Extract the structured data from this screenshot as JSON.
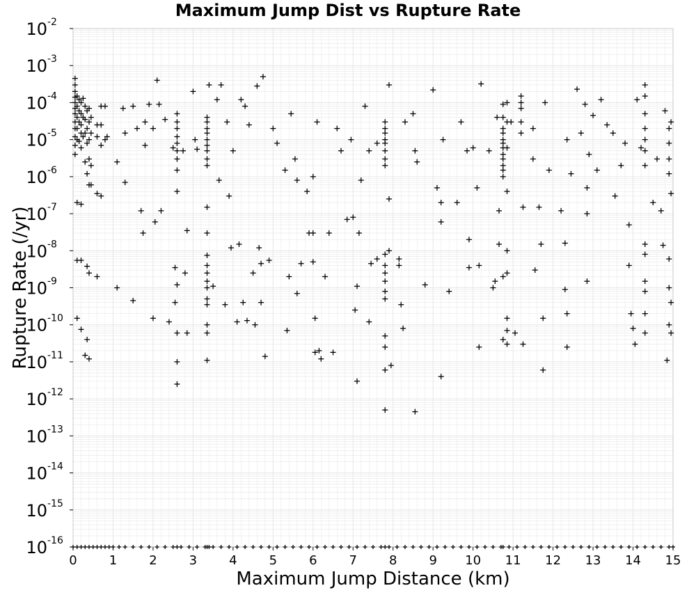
{
  "chart_data": {
    "type": "scatter",
    "title": "Maximum Jump Dist vs Rupture Rate",
    "xlabel": "Maximum Jump Distance (km)",
    "ylabel": "Rupture Rate (/yr)",
    "xlim": [
      0,
      15
    ],
    "ylim": [
      1e-16,
      0.01
    ],
    "yscale": "log",
    "grid": true,
    "marker": "+",
    "marker_color": "#000000",
    "grid_color": "#e6e6e6",
    "x_ticks": [
      "0",
      "1",
      "2",
      "3",
      "4",
      "5",
      "6",
      "7",
      "8",
      "9",
      "10",
      "11",
      "12",
      "13",
      "14",
      "15"
    ],
    "y_ticks": [
      {
        "base": "10",
        "exp": "-2"
      },
      {
        "base": "10",
        "exp": "-3"
      },
      {
        "base": "10",
        "exp": "-4"
      },
      {
        "base": "10",
        "exp": "-5"
      },
      {
        "base": "10",
        "exp": "-6"
      },
      {
        "base": "10",
        "exp": "-7"
      },
      {
        "base": "10",
        "exp": "-8"
      },
      {
        "base": "10",
        "exp": "-9"
      },
      {
        "base": "10",
        "exp": "-10"
      },
      {
        "base": "10",
        "exp": "-11"
      },
      {
        "base": "10",
        "exp": "-12"
      },
      {
        "base": "10",
        "exp": "-13"
      },
      {
        "base": "10",
        "exp": "-14"
      },
      {
        "base": "10",
        "exp": "-15"
      },
      {
        "base": "10",
        "exp": "-16"
      }
    ],
    "points": [
      [
        0.05,
        0.00045
      ],
      [
        0.05,
        0.0003
      ],
      [
        0.05,
        0.0002
      ],
      [
        0.05,
        0.00014
      ],
      [
        0.05,
        0.0001
      ],
      [
        0.05,
        7e-05
      ],
      [
        0.05,
        5e-05
      ],
      [
        0.05,
        3e-05
      ],
      [
        0.05,
        2e-05
      ],
      [
        0.05,
        1.2e-05
      ],
      [
        0.05,
        7e-06
      ],
      [
        0.05,
        4e-06
      ],
      [
        0.1,
        0.00015
      ],
      [
        0.1,
        8e-05
      ],
      [
        0.1,
        4e-05
      ],
      [
        0.1,
        2e-05
      ],
      [
        0.1,
        1e-05
      ],
      [
        0.1,
        2e-07
      ],
      [
        0.1,
        5.5e-09
      ],
      [
        0.1,
        1.5e-10
      ],
      [
        0.15,
        0.00012
      ],
      [
        0.15,
        6e-05
      ],
      [
        0.15,
        3e-05
      ],
      [
        0.15,
        9e-06
      ],
      [
        0.2,
        0.0001
      ],
      [
        0.2,
        5e-05
      ],
      [
        0.2,
        2.5e-05
      ],
      [
        0.2,
        1.5e-05
      ],
      [
        0.2,
        6e-06
      ],
      [
        0.2,
        1.8e-07
      ],
      [
        0.2,
        5.5e-09
      ],
      [
        0.2,
        7.5e-11
      ],
      [
        0.25,
        0.00013
      ],
      [
        0.25,
        4e-05
      ],
      [
        0.25,
        1.2e-05
      ],
      [
        0.3,
        8e-05
      ],
      [
        0.3,
        3.5e-05
      ],
      [
        0.3,
        1.5e-05
      ],
      [
        0.3,
        2.5e-06
      ],
      [
        0.3,
        1.5e-11
      ],
      [
        0.35,
        6e-05
      ],
      [
        0.35,
        2e-05
      ],
      [
        0.35,
        8e-06
      ],
      [
        0.35,
        1.2e-06
      ],
      [
        0.35,
        3.8e-09
      ],
      [
        0.35,
        4e-11
      ],
      [
        0.4,
        7e-05
      ],
      [
        0.4,
        3e-05
      ],
      [
        0.4,
        1e-05
      ],
      [
        0.4,
        3e-06
      ],
      [
        0.4,
        6e-07
      ],
      [
        0.4,
        2.5e-09
      ],
      [
        0.4,
        1.2e-11
      ],
      [
        0.45,
        4e-05
      ],
      [
        0.45,
        1.5e-05
      ],
      [
        0.45,
        2e-06
      ],
      [
        0.45,
        6e-07
      ],
      [
        0.6,
        2.5e-05
      ],
      [
        0.6,
        1.2e-05
      ],
      [
        0.6,
        3.5e-07
      ],
      [
        0.6,
        2e-09
      ],
      [
        0.7,
        8e-05
      ],
      [
        0.7,
        2.5e-05
      ],
      [
        0.7,
        7e-06
      ],
      [
        0.7,
        3e-07
      ],
      [
        0.8,
        8e-05
      ],
      [
        0.8,
        1e-05
      ],
      [
        0.85,
        1.2e-05
      ],
      [
        1.1,
        2.5e-06
      ],
      [
        1.1,
        1e-09
      ],
      [
        1.25,
        7e-05
      ],
      [
        1.3,
        1.5e-05
      ],
      [
        1.3,
        7e-07
      ],
      [
        1.5,
        4.5e-10
      ],
      [
        1.5,
        8e-05
      ],
      [
        1.6,
        2e-05
      ],
      [
        1.7,
        1.2e-07
      ],
      [
        1.75,
        3e-08
      ],
      [
        1.8,
        7e-06
      ],
      [
        1.8,
        3e-05
      ],
      [
        1.9,
        9e-05
      ],
      [
        2.0,
        1.5e-10
      ],
      [
        2.0,
        2e-05
      ],
      [
        2.05,
        6e-08
      ],
      [
        2.1,
        0.0004
      ],
      [
        2.15,
        9e-05
      ],
      [
        2.2,
        1.2e-07
      ],
      [
        2.3,
        3.5e-05
      ],
      [
        2.4,
        1.2e-10
      ],
      [
        2.5,
        6e-06
      ],
      [
        2.55,
        3.5e-09
      ],
      [
        2.55,
        4e-10
      ],
      [
        2.6,
        5e-05
      ],
      [
        2.6,
        3e-05
      ],
      [
        2.6,
        2e-05
      ],
      [
        2.6,
        1.2e-05
      ],
      [
        2.6,
        8e-06
      ],
      [
        2.6,
        5e-06
      ],
      [
        2.6,
        3e-06
      ],
      [
        2.6,
        1.5e-06
      ],
      [
        2.6,
        4e-07
      ],
      [
        2.6,
        1.2e-09
      ],
      [
        2.6,
        6e-11
      ],
      [
        2.6,
        1e-11
      ],
      [
        2.6,
        2.5e-12
      ],
      [
        2.75,
        5e-06
      ],
      [
        2.8,
        2.5e-09
      ],
      [
        2.85,
        3.5e-08
      ],
      [
        2.85,
        6e-11
      ],
      [
        3.0,
        0.0002
      ],
      [
        3.05,
        1e-05
      ],
      [
        3.1,
        5.5e-06
      ],
      [
        3.35,
        4e-05
      ],
      [
        3.35,
        3e-05
      ],
      [
        3.35,
        2e-05
      ],
      [
        3.35,
        1.5e-05
      ],
      [
        3.35,
        1e-05
      ],
      [
        3.35,
        7e-06
      ],
      [
        3.35,
        5e-06
      ],
      [
        3.35,
        3e-06
      ],
      [
        3.35,
        2e-06
      ],
      [
        3.35,
        1.5e-07
      ],
      [
        3.35,
        3e-08
      ],
      [
        3.35,
        7.5e-09
      ],
      [
        3.35,
        4e-09
      ],
      [
        3.35,
        2.5e-09
      ],
      [
        3.35,
        1.5e-09
      ],
      [
        3.35,
        1e-09
      ],
      [
        3.35,
        5e-10
      ],
      [
        3.35,
        3.5e-10
      ],
      [
        3.35,
        1e-10
      ],
      [
        3.35,
        6e-11
      ],
      [
        3.35,
        1.1e-11
      ],
      [
        3.4,
        0.0003
      ],
      [
        3.5,
        1.1e-09
      ],
      [
        3.6,
        0.00012
      ],
      [
        3.65,
        8e-07
      ],
      [
        3.7,
        0.0003
      ],
      [
        3.8,
        3.5e-10
      ],
      [
        3.85,
        3e-05
      ],
      [
        3.9,
        3e-07
      ],
      [
        3.95,
        1.2e-08
      ],
      [
        4.0,
        5e-06
      ],
      [
        4.1,
        1.2e-10
      ],
      [
        4.15,
        1.5e-08
      ],
      [
        4.2,
        0.00012
      ],
      [
        4.25,
        4e-10
      ],
      [
        4.3,
        8e-05
      ],
      [
        4.35,
        1.3e-10
      ],
      [
        4.4,
        2.5e-05
      ],
      [
        4.5,
        2.5e-09
      ],
      [
        4.55,
        1e-10
      ],
      [
        4.6,
        0.00028
      ],
      [
        4.65,
        1.2e-08
      ],
      [
        4.7,
        4.5e-09
      ],
      [
        4.7,
        4e-10
      ],
      [
        4.75,
        0.0005
      ],
      [
        4.8,
        1.4e-11
      ],
      [
        4.9,
        5.5e-09
      ],
      [
        5.0,
        2e-05
      ],
      [
        5.1,
        8e-06
      ],
      [
        5.3,
        1.5e-06
      ],
      [
        5.35,
        7e-11
      ],
      [
        5.4,
        2e-09
      ],
      [
        5.45,
        5e-05
      ],
      [
        5.55,
        3e-06
      ],
      [
        5.6,
        7e-10
      ],
      [
        5.6,
        8e-07
      ],
      [
        5.7,
        4.5e-09
      ],
      [
        5.85,
        4e-07
      ],
      [
        5.9,
        3e-08
      ],
      [
        6.0,
        5e-09
      ],
      [
        6.0,
        3e-08
      ],
      [
        6.0,
        1e-06
      ],
      [
        6.05,
        1.5e-10
      ],
      [
        6.05,
        1.8e-11
      ],
      [
        6.1,
        3e-05
      ],
      [
        6.15,
        2e-11
      ],
      [
        6.2,
        1.2e-11
      ],
      [
        6.3,
        2e-09
      ],
      [
        6.4,
        3e-08
      ],
      [
        6.5,
        1.8e-11
      ],
      [
        6.6,
        2e-05
      ],
      [
        6.7,
        5e-06
      ],
      [
        6.85,
        7e-08
      ],
      [
        6.95,
        1e-05
      ],
      [
        7.0,
        8e-08
      ],
      [
        7.05,
        2.5e-10
      ],
      [
        7.1,
        3e-12
      ],
      [
        7.1,
        1.1e-09
      ],
      [
        7.15,
        3e-08
      ],
      [
        7.2,
        8e-07
      ],
      [
        7.3,
        8e-05
      ],
      [
        7.4,
        5e-06
      ],
      [
        7.4,
        1.2e-10
      ],
      [
        7.45,
        4.5e-09
      ],
      [
        7.6,
        8e-06
      ],
      [
        7.6,
        6e-09
      ],
      [
        7.8,
        3e-05
      ],
      [
        7.8,
        2e-05
      ],
      [
        7.8,
        1.5e-05
      ],
      [
        7.8,
        1e-05
      ],
      [
        7.8,
        8e-06
      ],
      [
        7.8,
        5e-06
      ],
      [
        7.8,
        3e-06
      ],
      [
        7.8,
        2e-06
      ],
      [
        7.8,
        8e-09
      ],
      [
        7.8,
        4e-09
      ],
      [
        7.8,
        2.5e-09
      ],
      [
        7.8,
        1.5e-09
      ],
      [
        7.8,
        8e-10
      ],
      [
        7.8,
        5e-10
      ],
      [
        7.8,
        5e-11
      ],
      [
        7.8,
        2.5e-11
      ],
      [
        7.8,
        6e-12
      ],
      [
        7.8,
        5e-13
      ],
      [
        7.9,
        0.0003
      ],
      [
        7.9,
        2.5e-07
      ],
      [
        7.9,
        1e-08
      ],
      [
        7.95,
        8e-12
      ],
      [
        8.15,
        6e-09
      ],
      [
        8.15,
        4e-09
      ],
      [
        8.2,
        3.5e-10
      ],
      [
        8.25,
        8e-11
      ],
      [
        8.3,
        3e-05
      ],
      [
        8.5,
        5e-05
      ],
      [
        8.55,
        5e-06
      ],
      [
        8.55,
        4.5e-13
      ],
      [
        8.6,
        2.5e-06
      ],
      [
        8.8,
        1.2e-09
      ],
      [
        9.0,
        0.00022
      ],
      [
        9.1,
        5e-07
      ],
      [
        9.2,
        2e-07
      ],
      [
        9.2,
        6e-08
      ],
      [
        9.2,
        4e-12
      ],
      [
        9.25,
        1e-05
      ],
      [
        9.4,
        8e-10
      ],
      [
        9.6,
        2e-07
      ],
      [
        9.7,
        3e-05
      ],
      [
        9.85,
        5e-06
      ],
      [
        9.9,
        3.5e-09
      ],
      [
        9.9,
        2e-08
      ],
      [
        10.0,
        6e-06
      ],
      [
        10.1,
        5e-07
      ],
      [
        10.15,
        4e-09
      ],
      [
        10.15,
        2.5e-11
      ],
      [
        10.2,
        0.00032
      ],
      [
        10.4,
        5e-06
      ],
      [
        10.5,
        1e-09
      ],
      [
        10.55,
        1.5e-09
      ],
      [
        10.6,
        4e-05
      ],
      [
        10.65,
        1.2e-07
      ],
      [
        10.65,
        1.5e-08
      ],
      [
        10.75,
        9e-05
      ],
      [
        10.75,
        4e-05
      ],
      [
        10.75,
        2e-05
      ],
      [
        10.75,
        1.5e-05
      ],
      [
        10.75,
        1e-05
      ],
      [
        10.75,
        8e-06
      ],
      [
        10.75,
        6e-06
      ],
      [
        10.75,
        4e-06
      ],
      [
        10.75,
        3e-06
      ],
      [
        10.75,
        2e-06
      ],
      [
        10.75,
        1.5e-06
      ],
      [
        10.75,
        1e-06
      ],
      [
        10.75,
        2e-09
      ],
      [
        10.75,
        4e-11
      ],
      [
        10.85,
        0.0001
      ],
      [
        10.85,
        3e-05
      ],
      [
        10.85,
        6e-06
      ],
      [
        10.85,
        4e-07
      ],
      [
        10.85,
        1e-08
      ],
      [
        10.85,
        2.5e-09
      ],
      [
        10.85,
        1.5e-10
      ],
      [
        10.85,
        7e-11
      ],
      [
        10.85,
        3e-11
      ],
      [
        10.95,
        3e-05
      ],
      [
        11.05,
        6e-11
      ],
      [
        11.2,
        0.00015
      ],
      [
        11.2,
        0.0001
      ],
      [
        11.2,
        7e-05
      ],
      [
        11.2,
        3e-05
      ],
      [
        11.2,
        1.5e-05
      ],
      [
        11.25,
        1.5e-07
      ],
      [
        11.25,
        3e-11
      ],
      [
        11.5,
        2e-05
      ],
      [
        11.5,
        3e-06
      ],
      [
        11.55,
        3e-09
      ],
      [
        11.65,
        1.5e-07
      ],
      [
        11.7,
        1.5e-08
      ],
      [
        11.75,
        1.5e-10
      ],
      [
        11.75,
        6e-12
      ],
      [
        11.8,
        0.0001
      ],
      [
        11.9,
        1.5e-06
      ],
      [
        12.2,
        1.2e-07
      ],
      [
        12.3,
        1.6e-08
      ],
      [
        12.3,
        9e-10
      ],
      [
        12.35,
        1e-05
      ],
      [
        12.35,
        2e-10
      ],
      [
        12.35,
        2.5e-11
      ],
      [
        12.45,
        1.2e-06
      ],
      [
        12.6,
        0.00023
      ],
      [
        12.7,
        1.5e-05
      ],
      [
        12.8,
        9e-05
      ],
      [
        12.85,
        5e-07
      ],
      [
        12.85,
        1e-07
      ],
      [
        12.85,
        1.5e-09
      ],
      [
        12.9,
        4e-06
      ],
      [
        13.0,
        4.5e-05
      ],
      [
        13.1,
        1.5e-06
      ],
      [
        13.2,
        0.00012
      ],
      [
        13.35,
        2.5e-05
      ],
      [
        13.5,
        1.5e-05
      ],
      [
        13.55,
        3e-07
      ],
      [
        13.7,
        2e-06
      ],
      [
        13.8,
        8e-06
      ],
      [
        13.9,
        5e-08
      ],
      [
        13.9,
        4e-09
      ],
      [
        13.95,
        2e-10
      ],
      [
        14.0,
        8e-11
      ],
      [
        14.05,
        3e-11
      ],
      [
        14.1,
        0.00012
      ],
      [
        14.2,
        6e-06
      ],
      [
        14.3,
        0.0003
      ],
      [
        14.3,
        0.00015
      ],
      [
        14.3,
        5e-05
      ],
      [
        14.3,
        2e-05
      ],
      [
        14.3,
        1e-05
      ],
      [
        14.3,
        5e-06
      ],
      [
        14.3,
        2e-06
      ],
      [
        14.3,
        1.5e-08
      ],
      [
        14.3,
        8e-09
      ],
      [
        14.3,
        1.5e-09
      ],
      [
        14.3,
        8e-10
      ],
      [
        14.3,
        2e-10
      ],
      [
        14.3,
        6e-11
      ],
      [
        14.5,
        2e-07
      ],
      [
        14.6,
        3e-06
      ],
      [
        14.7,
        1.2e-07
      ],
      [
        14.75,
        1.4e-08
      ],
      [
        14.8,
        6e-05
      ],
      [
        14.85,
        1.1e-11
      ],
      [
        14.9,
        2e-05
      ],
      [
        14.9,
        8e-06
      ],
      [
        14.9,
        3e-06
      ],
      [
        14.9,
        1.2e-06
      ],
      [
        14.9,
        6e-09
      ],
      [
        14.9,
        1e-09
      ],
      [
        14.9,
        1e-10
      ],
      [
        14.95,
        3e-05
      ],
      [
        14.95,
        3.5e-07
      ],
      [
        14.95,
        4e-10
      ],
      [
        14.95,
        6e-11
      ]
    ],
    "floor_points_x": [
      0.0,
      0.1,
      0.2,
      0.3,
      0.4,
      0.5,
      0.6,
      0.7,
      0.8,
      0.9,
      1.0,
      1.15,
      1.3,
      1.5,
      1.7,
      1.9,
      2.1,
      2.3,
      2.5,
      2.6,
      2.7,
      2.9,
      3.1,
      3.3,
      3.35,
      3.4,
      3.5,
      3.7,
      3.9,
      4.1,
      4.3,
      4.5,
      4.7,
      4.9,
      5.1,
      5.3,
      5.5,
      5.7,
      5.9,
      6.1,
      6.3,
      6.5,
      6.7,
      6.9,
      7.1,
      7.3,
      7.5,
      7.7,
      7.8,
      7.9,
      8.1,
      8.3,
      8.5,
      8.7,
      8.9,
      9.1,
      9.3,
      9.5,
      9.7,
      9.9,
      10.1,
      10.3,
      10.5,
      10.7,
      10.75,
      10.9,
      11.1,
      11.3,
      11.5,
      11.7,
      11.9,
      12.1,
      12.3,
      12.5,
      12.7,
      12.9,
      13.1,
      13.3,
      13.5,
      13.7,
      13.9,
      14.1,
      14.3,
      14.5,
      14.7,
      14.9,
      15.0
    ]
  }
}
